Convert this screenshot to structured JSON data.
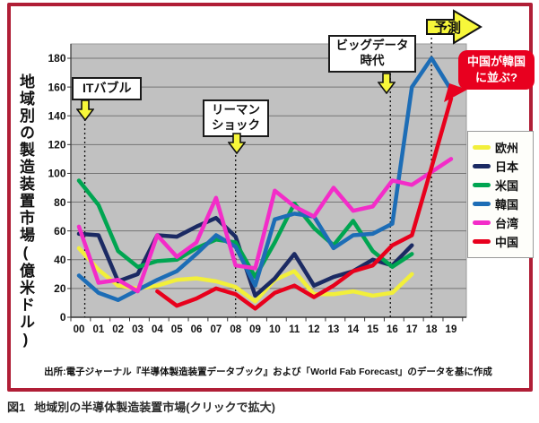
{
  "figure": {
    "y_axis_title": "地域別の製造装置市場(億米ドル)",
    "source": "出所:電子ジャーナル『半導体製造装置データブック』および「World Fab Forecast」のデータを基に作成",
    "caption": {
      "fig_label": "図1",
      "text": "地域別の半導体製造装置市場(クリックで拡大)"
    }
  },
  "annotations": {
    "it_bubble": {
      "label": "ITバブル"
    },
    "lehman": {
      "lines": [
        "リーマン",
        "ショック"
      ]
    },
    "big_data": {
      "lines": [
        "ビッグデータ",
        "時代"
      ]
    },
    "forecast": {
      "label": "予測"
    },
    "china_korea": {
      "lines": [
        "中国が韓国",
        "に並ぶ?"
      ]
    }
  },
  "colors": {
    "frame": "#b01e36",
    "plot_bg": "#c1c1c1",
    "gridline": "#757575",
    "axis": "#333333",
    "callout_arrow": "#f7f73a",
    "bubble_bg": "#e8001f"
  },
  "chart_data": {
    "type": "line",
    "title": "",
    "xlabel": "",
    "ylabel": "地域別の製造装置市場(億米ドル)",
    "categories": [
      "00",
      "01",
      "02",
      "03",
      "04",
      "05",
      "06",
      "07",
      "08",
      "09",
      "10",
      "11",
      "12",
      "13",
      "14",
      "15",
      "16",
      "17",
      "18",
      "19"
    ],
    "ylim": [
      0,
      190
    ],
    "ytick_step": 20,
    "grid": true,
    "legend_position": "right",
    "series": [
      {
        "id": "europe",
        "name": "欧州",
        "color": "#f2ef3a",
        "values": [
          48,
          33,
          22,
          20,
          22,
          26,
          27,
          25,
          21,
          11,
          26,
          32,
          16,
          16,
          18,
          15,
          17,
          30,
          null,
          null
        ]
      },
      {
        "id": "japan",
        "name": "日本",
        "color": "#1b2a63",
        "values": [
          58,
          57,
          25,
          30,
          57,
          56,
          63,
          69,
          56,
          15,
          27,
          44,
          22,
          28,
          32,
          40,
          36,
          50,
          null,
          null
        ]
      },
      {
        "id": "usa",
        "name": "米国",
        "color": "#00a551",
        "values": [
          95,
          78,
          46,
          35,
          39,
          40,
          48,
          54,
          52,
          28,
          52,
          79,
          62,
          50,
          67,
          46,
          35,
          44,
          null,
          null
        ]
      },
      {
        "id": "korea",
        "name": "韓国",
        "color": "#1d6db6",
        "values": [
          29,
          17,
          12,
          19,
          26,
          32,
          44,
          57,
          49,
          22,
          68,
          72,
          70,
          48,
          57,
          58,
          65,
          160,
          180,
          158
        ]
      },
      {
        "id": "taiwan",
        "name": "台湾",
        "color": "#f32cc8",
        "values": [
          63,
          24,
          26,
          18,
          57,
          42,
          52,
          83,
          36,
          34,
          88,
          77,
          70,
          90,
          74,
          77,
          95,
          92,
          101,
          110
        ]
      },
      {
        "id": "china",
        "name": "中国",
        "color": "#e8001c",
        "values": [
          null,
          null,
          null,
          null,
          18,
          8,
          13,
          20,
          16,
          6,
          17,
          22,
          14,
          22,
          32,
          36,
          50,
          57,
          104,
          152
        ]
      }
    ],
    "dotted_vlines": [
      {
        "year_index": 0.3,
        "for": "it_bubble"
      },
      {
        "year_index": 8.0,
        "for": "lehman"
      },
      {
        "year_index": 15.9,
        "for": "big_data"
      },
      {
        "year_index": 18.0,
        "for": "forecast"
      }
    ]
  }
}
